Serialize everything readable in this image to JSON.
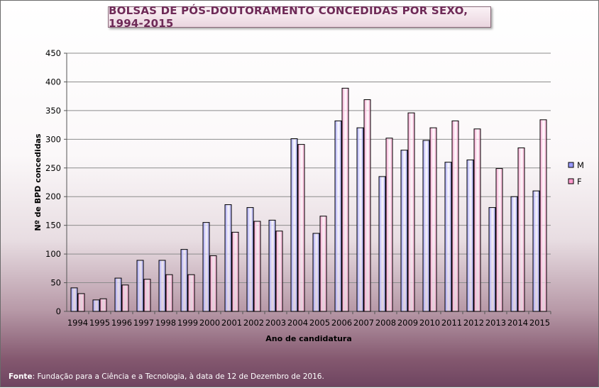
{
  "source": {
    "label": "Fonte",
    "text": ": Fundação para a Ciência e a Tecnologia, à data de 12 de Dezembro de 2016."
  },
  "colors": {
    "M": "#9999ff",
    "F": "#ff99cc",
    "title_text": "#6e2a57"
  },
  "chart_data": {
    "type": "bar",
    "title": "BOLSAS DE PÓS-DOUTORAMENTO CONCEDIDAS POR SEXO, 1994-2015",
    "xlabel": "Ano de candidatura",
    "ylabel": "Nº de BPD concedidas",
    "ylim": [
      0,
      450
    ],
    "yticks": [
      0,
      50,
      100,
      150,
      200,
      250,
      300,
      350,
      400,
      450
    ],
    "grid": true,
    "legend": "right",
    "categories": [
      "1994",
      "1995",
      "1996",
      "1997",
      "1998",
      "1999",
      "2000",
      "2001",
      "2002",
      "2003",
      "2004",
      "2005",
      "2006",
      "2007",
      "2008",
      "2009",
      "2010",
      "2011",
      "2012",
      "2013",
      "2014",
      "2015"
    ],
    "series": [
      {
        "name": "M",
        "values": [
          41,
          20,
          58,
          89,
          89,
          108,
          155,
          186,
          181,
          159,
          301,
          136,
          332,
          320,
          235,
          281,
          298,
          260,
          264,
          181,
          200,
          210
        ]
      },
      {
        "name": "F",
        "values": [
          31,
          22,
          46,
          56,
          64,
          64,
          97,
          138,
          157,
          140,
          291,
          166,
          389,
          369,
          302,
          346,
          320,
          332,
          318,
          249,
          285,
          334
        ]
      }
    ]
  }
}
